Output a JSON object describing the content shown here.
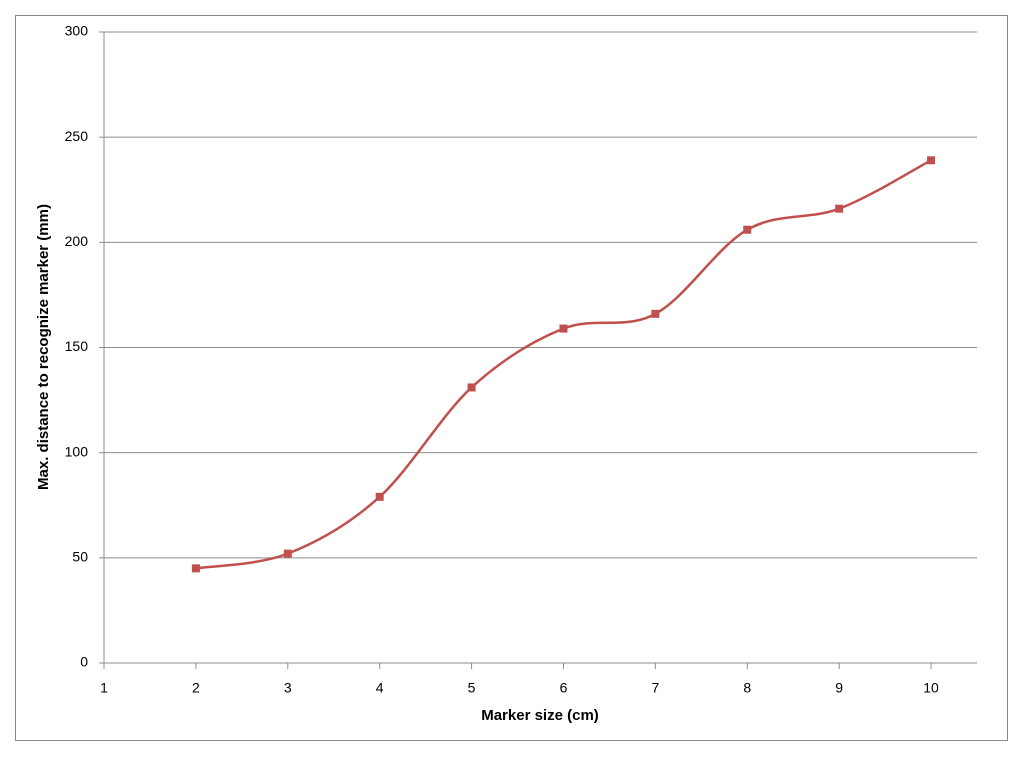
{
  "chart_data": {
    "type": "line",
    "smooth": true,
    "xlabel": "Marker size (cm)",
    "ylabel": "Max. distance to recognize marker (mm)",
    "x": [
      2,
      3,
      4,
      5,
      6,
      7,
      8,
      9,
      10
    ],
    "values": [
      45,
      52,
      79,
      131,
      159,
      166,
      206,
      216,
      239
    ],
    "color": "#c0504d",
    "xlim": [
      1,
      10.5
    ],
    "xticks": [
      1,
      2,
      3,
      4,
      5,
      6,
      7,
      8,
      9,
      10
    ],
    "ylim": [
      0,
      300
    ],
    "yticks": [
      0,
      50,
      100,
      150,
      200,
      250,
      300
    ],
    "grid": true
  }
}
